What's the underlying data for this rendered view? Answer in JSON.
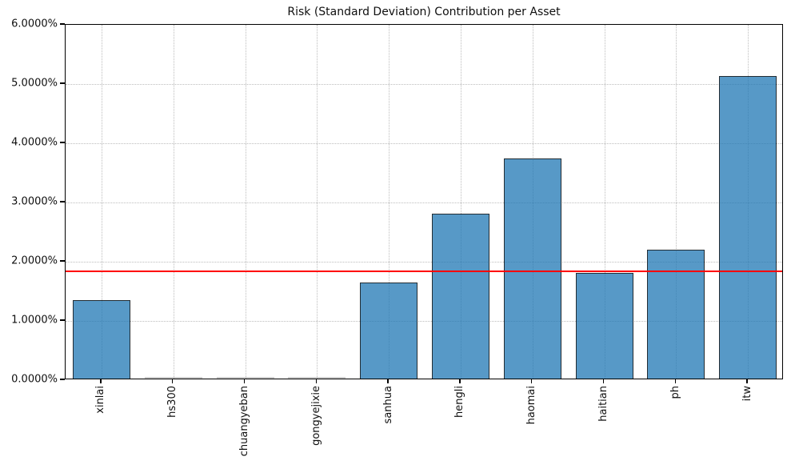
{
  "chart_data": {
    "type": "bar",
    "title": "Risk (Standard Deviation) Contribution per Asset",
    "categories": [
      "xinlai",
      "hs300",
      "chuangyeban",
      "gongyejixie",
      "sanhua",
      "hengli",
      "haomai",
      "haitian",
      "ph",
      "itw"
    ],
    "values": [
      1.32,
      0.0,
      0.0,
      0.0,
      1.62,
      2.78,
      3.72,
      1.79,
      2.18,
      5.11
    ],
    "values_unit": "%",
    "xlabel": "",
    "ylabel": "",
    "ylim": [
      0,
      6
    ],
    "ytick_labels": [
      "0.0000%",
      "1.0000%",
      "2.0000%",
      "3.0000%",
      "4.0000%",
      "5.0000%",
      "6.0000%"
    ],
    "mean_line_value": 1.85,
    "grid": "dotted, horizontal and vertical",
    "legend": "none",
    "colors": {
      "bar_fill": "#1f77b4",
      "bar_edge": "#191919",
      "mean_line": "#ff0000",
      "grid": "#bdbdbd",
      "axis": "#000000"
    }
  }
}
